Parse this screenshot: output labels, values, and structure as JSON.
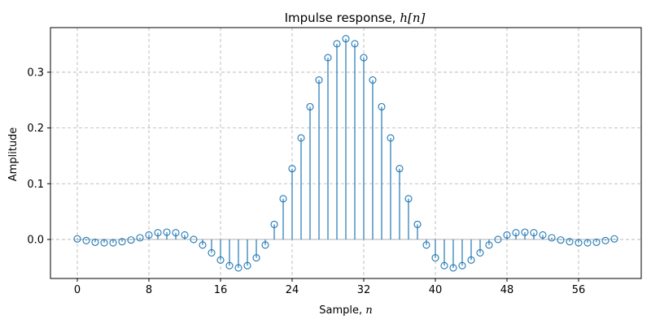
{
  "chart_data": {
    "type": "stem",
    "title_prefix": "Impulse response, ",
    "title_math": "h[n]",
    "xlabel_prefix": "Sample, ",
    "xlabel_math": "n",
    "ylabel": "Amplitude",
    "xlim": [
      -3,
      63
    ],
    "ylim": [
      -0.07,
      0.38
    ],
    "xticks": [
      0,
      8,
      16,
      24,
      32,
      40,
      48,
      56
    ],
    "yticks": [
      0.0,
      0.1,
      0.2,
      0.3
    ],
    "ytick_labels": [
      "0.0",
      "0.1",
      "0.2",
      "0.3"
    ],
    "grid": true,
    "baseline": 0,
    "colors": {
      "stem": "#1f77b4",
      "baseline": "#b3b3b3",
      "grid": "#b0b0b0"
    },
    "series": [
      {
        "x": [
          0,
          1,
          2,
          3,
          4,
          5,
          6,
          7,
          8,
          9,
          10,
          11,
          12,
          13,
          14,
          15,
          16,
          17,
          18,
          19,
          20,
          21,
          22,
          23,
          24,
          25,
          26,
          27,
          28,
          29,
          30,
          31,
          32,
          33,
          34,
          35,
          36,
          37,
          38,
          39,
          40,
          41,
          42,
          43,
          44,
          45,
          46,
          47,
          48,
          49,
          50,
          51,
          52,
          53,
          54,
          55,
          56,
          57,
          58,
          59,
          60
        ],
        "y": [
          0.001,
          -0.002,
          -0.005,
          -0.006,
          -0.006,
          -0.004,
          -0.001,
          0.003,
          0.008,
          0.012,
          0.013,
          0.012,
          0.008,
          0.0,
          -0.01,
          -0.024,
          -0.037,
          -0.047,
          -0.051,
          -0.047,
          -0.033,
          -0.01,
          0.027,
          0.073,
          0.127,
          0.182,
          0.238,
          0.286,
          0.326,
          0.351,
          0.36,
          0.351,
          0.326,
          0.286,
          0.238,
          0.182,
          0.127,
          0.073,
          0.027,
          -0.01,
          -0.033,
          -0.047,
          -0.051,
          -0.047,
          -0.037,
          -0.024,
          -0.01,
          0.0,
          0.008,
          0.012,
          0.013,
          0.012,
          0.008,
          0.003,
          -0.001,
          -0.004,
          -0.006,
          -0.006,
          -0.005,
          -0.002,
          0.001
        ]
      }
    ]
  }
}
